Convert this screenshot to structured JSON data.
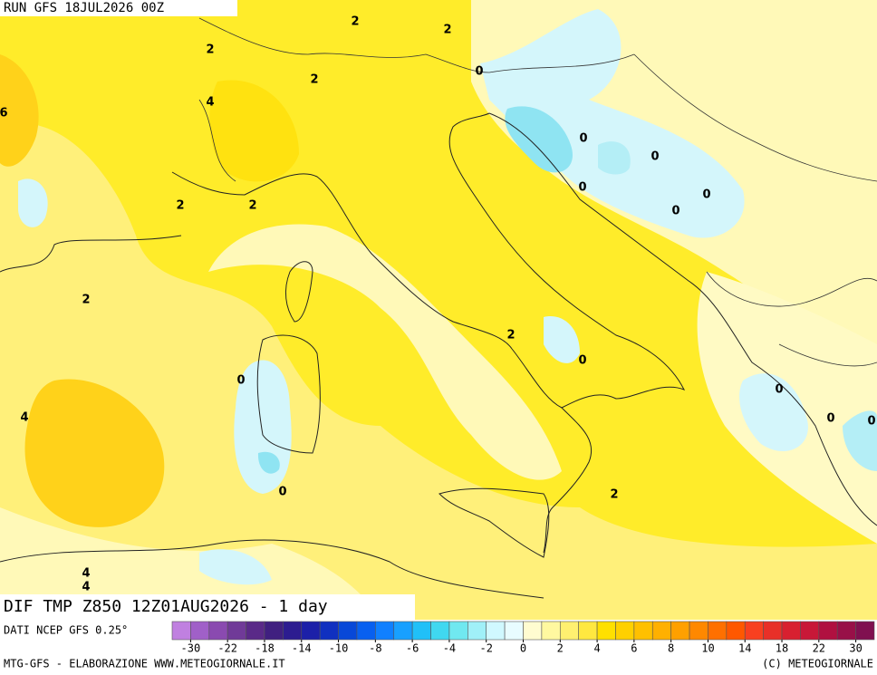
{
  "header": {
    "run": "RUN GFS 18JUL2026 00Z"
  },
  "title": "DIF TMP Z850 12Z01AUG2026 - 1 day",
  "source": "DATI NCEP GFS 0.25°",
  "footer": {
    "left": "MTG-GFS - ELABORAZIONE WWW.METEOGIORNALE.IT",
    "right": "(C) METEOGIORNALE"
  },
  "contour_labels": [
    2,
    2,
    2,
    0,
    2,
    4,
    6,
    0,
    0,
    0,
    0,
    2,
    2,
    0,
    2,
    2,
    0,
    0,
    0,
    0,
    0,
    4,
    0,
    2,
    4,
    4
  ],
  "colorbar": {
    "labels": [
      -30,
      -22,
      -18,
      -14,
      -10,
      -8,
      -6,
      -4,
      -2,
      0,
      2,
      4,
      6,
      8,
      10,
      14,
      18,
      22,
      30
    ],
    "colors": [
      "#c080e0",
      "#a060c8",
      "#8a4ab0",
      "#703a98",
      "#5a2a88",
      "#402080",
      "#2c1c90",
      "#1c20a8",
      "#1030c0",
      "#0848d8",
      "#0860f0",
      "#1080ff",
      "#18a0ff",
      "#20c0f8",
      "#40d8f0",
      "#70e8f0",
      "#a0f0f8",
      "#d0f8ff",
      "#e8fcff",
      "#fffcd0",
      "#fff8a0",
      "#fff070",
      "#ffe840",
      "#ffe000",
      "#ffd000",
      "#ffc000",
      "#ffb000",
      "#ffa000",
      "#ff8800",
      "#ff7000",
      "#ff5800",
      "#f84020",
      "#e83028",
      "#d82030",
      "#c81838",
      "#b01040",
      "#981048",
      "#801050"
    ]
  }
}
